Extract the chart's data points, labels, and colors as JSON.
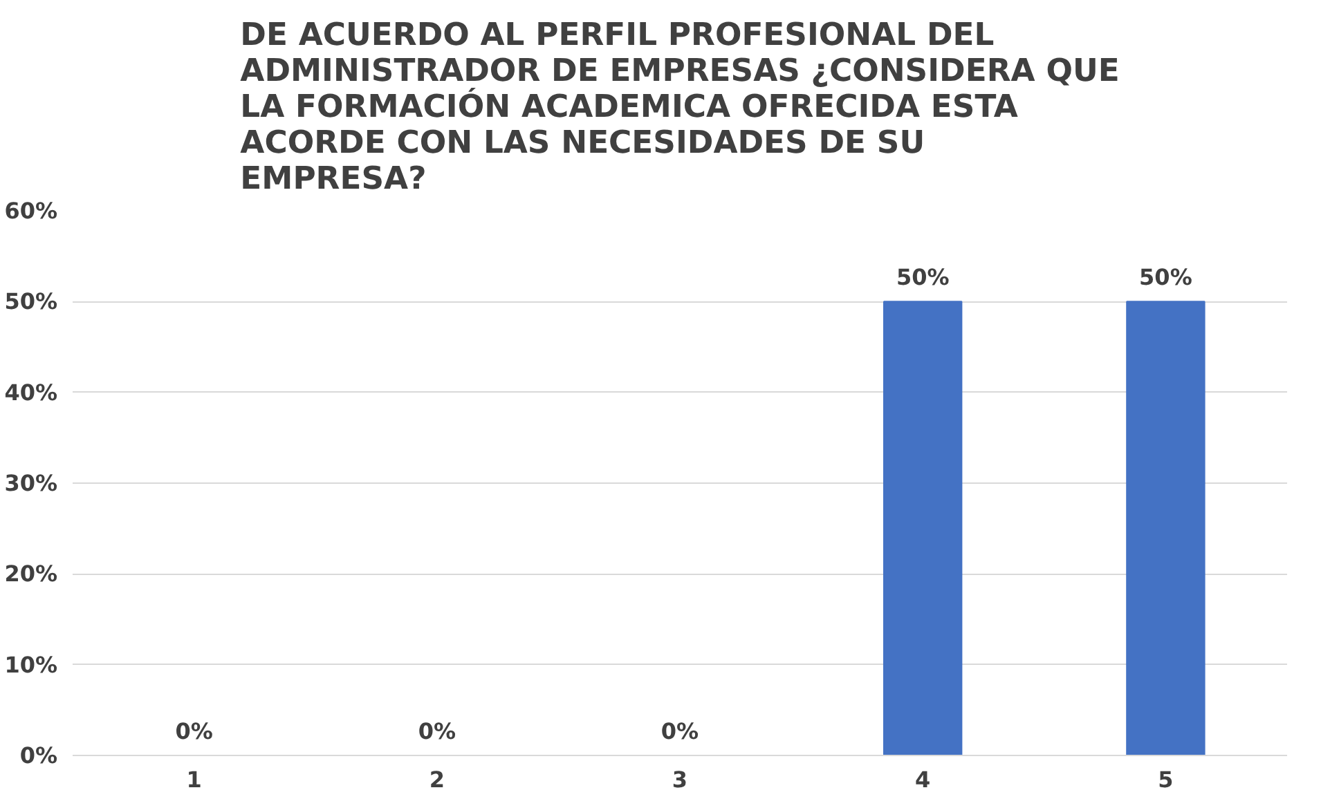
{
  "chart_data": {
    "type": "bar",
    "title": "DE ACUERDO AL PERFIL PROFESIONAL DEL ADMINISTRADOR DE EMPRESAS ¿CONSIDERA QUE LA FORMACIÓN ACADEMICA OFRECIDA ESTA ACORDE CON LAS NECESIDADES DE SU EMPRESA?",
    "categories": [
      "1",
      "2",
      "3",
      "4",
      "5"
    ],
    "values": [
      0,
      0,
      0,
      50,
      50
    ],
    "value_labels": [
      "0%",
      "0%",
      "0%",
      "50%",
      "50%"
    ],
    "color": "#4472c4",
    "ylim": [
      0,
      60
    ],
    "yticks": [
      {
        "value": 0,
        "label": "0%"
      },
      {
        "value": 10,
        "label": "10%"
      },
      {
        "value": 20,
        "label": "20%"
      },
      {
        "value": 30,
        "label": "30%"
      },
      {
        "value": 40,
        "label": "40%"
      },
      {
        "value": 50,
        "label": "50%"
      },
      {
        "value": 60,
        "label": "60%"
      }
    ],
    "grid": "y"
  }
}
